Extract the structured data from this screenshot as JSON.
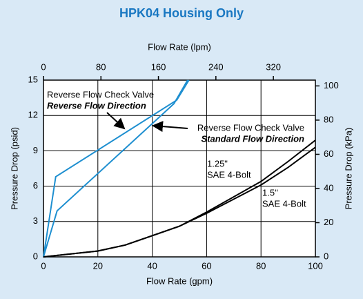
{
  "chart_data": {
    "type": "line",
    "title": "HPK04 Housing Only",
    "x_label": "Flow Rate (gpm)",
    "x2_label": "Flow Rate (lpm)",
    "y_label": "Pressure Drop (psid)",
    "y2_label": "Pressure Drop (kPa)",
    "xlim": [
      0,
      100
    ],
    "xticks": [
      0,
      20,
      40,
      60,
      80,
      100
    ],
    "x2lim": [
      0,
      378.5
    ],
    "x2ticks": [
      0,
      80,
      160,
      240,
      320
    ],
    "ylim": [
      0,
      15
    ],
    "yticks": [
      0,
      3,
      6,
      9,
      12,
      15
    ],
    "y2lim": [
      0,
      103.4
    ],
    "y2ticks": [
      0,
      20,
      40,
      60,
      80,
      100
    ],
    "grid": true,
    "series": [
      {
        "color": "#1e8fd0",
        "x": [
          0,
          4.5,
          49,
          53.5
        ],
        "values": [
          0,
          6.8,
          13.3,
          15
        ]
      },
      {
        "color": "#1e8fd0",
        "x": [
          0,
          5,
          48,
          53
        ],
        "values": [
          0,
          3.9,
          13,
          15
        ]
      },
      {
        "color": "#000000",
        "x": [
          0,
          20,
          30,
          40,
          50,
          60,
          70,
          80,
          90,
          100
        ],
        "values": [
          0,
          0.5,
          1.0,
          1.8,
          2.6,
          3.8,
          5.1,
          6.4,
          8.1,
          9.9
        ]
      },
      {
        "color": "#000000",
        "x": [
          0,
          20,
          30,
          40,
          50,
          60,
          70,
          80,
          90,
          100
        ],
        "values": [
          0,
          0.5,
          1.0,
          1.8,
          2.6,
          3.7,
          4.9,
          6.1,
          7.6,
          9.3
        ]
      }
    ],
    "annotations": [
      {
        "lines": [
          "Reverse Flow Check Valve",
          "Reverse Flow Direction"
        ]
      },
      {
        "lines": [
          "Reverse Flow Check Valve",
          "Standard Flow Direction"
        ]
      },
      {
        "lines": [
          "1.25\"",
          "SAE 4-Bolt"
        ]
      },
      {
        "lines": [
          "1.5\"",
          "SAE 4-Bolt"
        ]
      }
    ]
  }
}
